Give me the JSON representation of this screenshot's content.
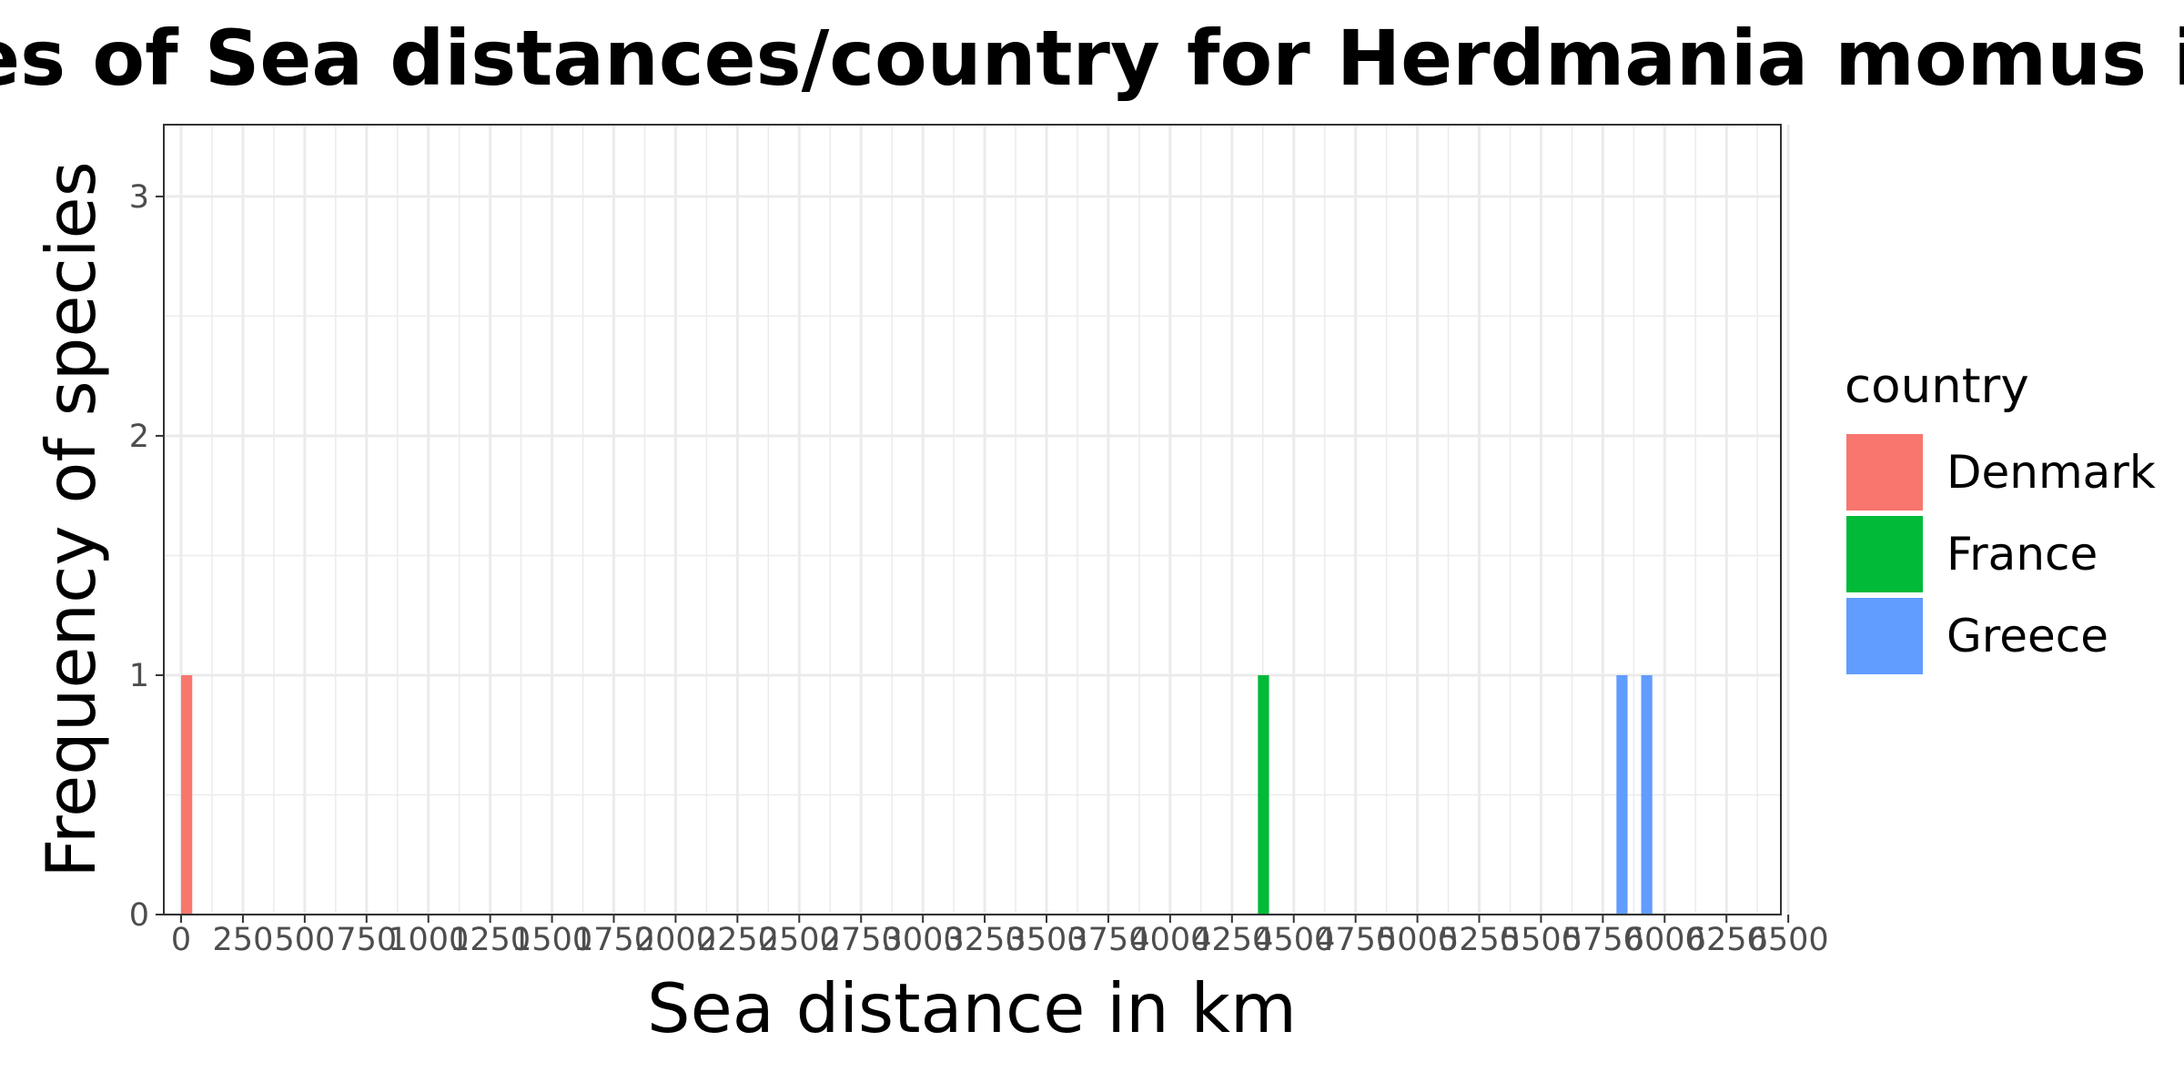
{
  "chart_data": {
    "type": "bar",
    "title": "Frequencies of Sea distances/country for Herdmania momus in Limfjord",
    "xlabel": "Sea distance in km",
    "ylabel": "Frequency of species",
    "x_ticks": [
      0,
      250,
      500,
      750,
      1000,
      1250,
      1500,
      1750,
      2000,
      2250,
      2500,
      2750,
      3000,
      3250,
      3500,
      3750,
      4000,
      4250,
      4500,
      4750,
      5000,
      5250,
      5500,
      5750,
      6000,
      6250,
      6500
    ],
    "x_tick_labels": [
      "0",
      "250",
      "500",
      "750",
      "1000",
      "1250",
      "1500",
      "1750",
      "2000",
      "2250",
      "2500",
      "2750",
      "3000",
      "3250",
      "3500",
      "3750",
      "4000",
      "4250",
      "4500",
      "4750",
      "5000",
      "5250",
      "5500",
      "5750",
      "6000",
      "6250",
      "6500"
    ],
    "y_ticks": [
      0,
      1,
      2,
      3
    ],
    "y_tick_labels": [
      "0",
      "1",
      "2",
      "3"
    ],
    "xlim": [
      -70,
      6470
    ],
    "ylim": [
      0,
      3.3
    ],
    "grid": true,
    "legend_position": "right",
    "legend_title": "country",
    "series": [
      {
        "name": "Denmark",
        "color": "#F8766D",
        "bars": [
          {
            "x0": 0,
            "x1": 45,
            "count": 1
          }
        ]
      },
      {
        "name": "France",
        "color": "#00BA38",
        "bars": [
          {
            "x0": 4355,
            "x1": 4400,
            "count": 1
          }
        ]
      },
      {
        "name": "Greece",
        "color": "#619CFF",
        "bars": [
          {
            "x0": 5805,
            "x1": 5850,
            "count": 1
          },
          {
            "x0": 5905,
            "x1": 5950,
            "count": 1
          }
        ]
      }
    ]
  }
}
